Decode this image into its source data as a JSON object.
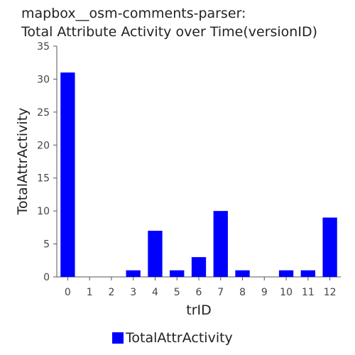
{
  "chart_data": {
    "type": "bar",
    "title_lines": [
      "mapbox__osm-comments-parser:",
      "Total Attribute Activity over Time(versionID)"
    ],
    "xlabel": "trID",
    "ylabel": "TotalAttrActivity",
    "categories": [
      "0",
      "1",
      "2",
      "3",
      "4",
      "5",
      "6",
      "7",
      "8",
      "9",
      "10",
      "11",
      "12"
    ],
    "series": [
      {
        "name": "TotalAttrActivity",
        "values": [
          31,
          0,
          0,
          1,
          7,
          1,
          3,
          10,
          1,
          0,
          1,
          1,
          9
        ]
      }
    ],
    "ylim": [
      0,
      35
    ],
    "yticks": [
      0,
      5,
      10,
      15,
      20,
      25,
      30,
      35
    ],
    "grid": false,
    "legend_position": "bottom",
    "bar_color": "#0000ff"
  }
}
